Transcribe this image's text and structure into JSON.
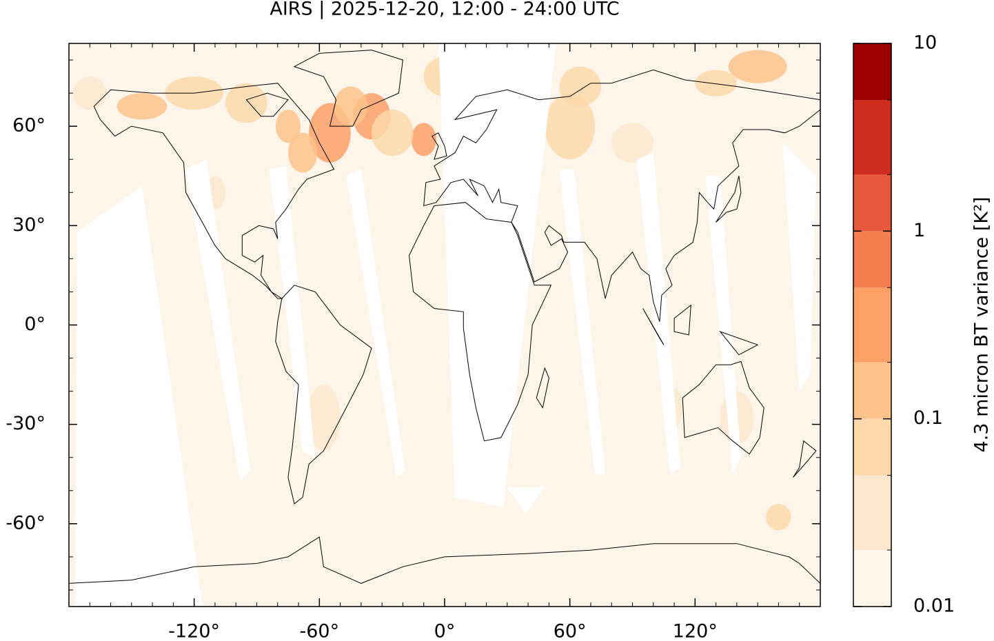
{
  "map": {
    "title": "AIRS | 2025-12-20, 12:00 - 24:00 UTC",
    "xlim": [
      -180,
      180
    ],
    "ylim": [
      -85,
      85
    ],
    "xticks": [
      {
        "value": -120,
        "label": "-120°"
      },
      {
        "value": -60,
        "label": "-60°"
      },
      {
        "value": 0,
        "label": "0°"
      },
      {
        "value": 60,
        "label": "60°"
      },
      {
        "value": 120,
        "label": "120°"
      }
    ],
    "yticks": [
      {
        "value": 60,
        "label": "60°"
      },
      {
        "value": 30,
        "label": "30°"
      },
      {
        "value": 0,
        "label": "0°"
      },
      {
        "value": -30,
        "label": "-30°"
      },
      {
        "value": -60,
        "label": "-60°"
      }
    ],
    "colorbar": {
      "label": "4.3 micron BT variance [K²]",
      "scale": "log",
      "lim": [
        0.01,
        10
      ],
      "ticks": [
        0.01,
        0.1,
        1,
        10
      ],
      "levels": [
        0.01,
        0.02,
        0.05,
        0.1,
        0.2,
        0.5,
        1,
        2,
        5,
        10
      ],
      "colors": [
        "#fdf5ea",
        "#fde8cf",
        "#fdd8aa",
        "#fdc38b",
        "#fca068",
        "#f47e50",
        "#e6593d",
        "#cf2c1f",
        "#9c0000"
      ]
    }
  }
}
